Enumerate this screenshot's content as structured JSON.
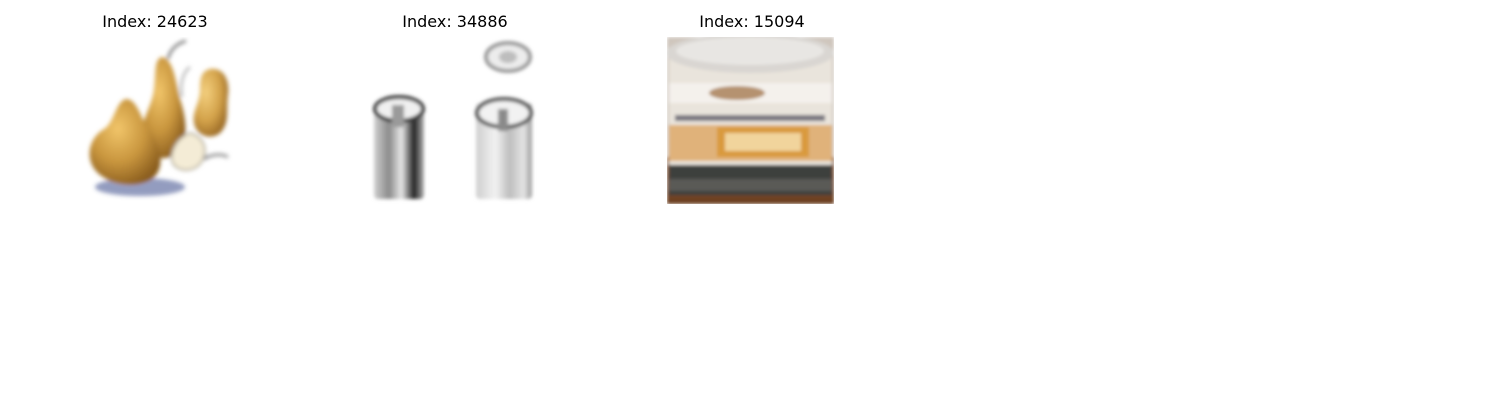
{
  "panels": [
    {
      "title": "Index: 24623",
      "subject": "pears"
    },
    {
      "title": "Index: 34886",
      "subject": "cans"
    },
    {
      "title": "Index: 15094",
      "subject": "tub"
    }
  ],
  "colors": {
    "background": "#ffffff",
    "title_text": "#000000"
  }
}
